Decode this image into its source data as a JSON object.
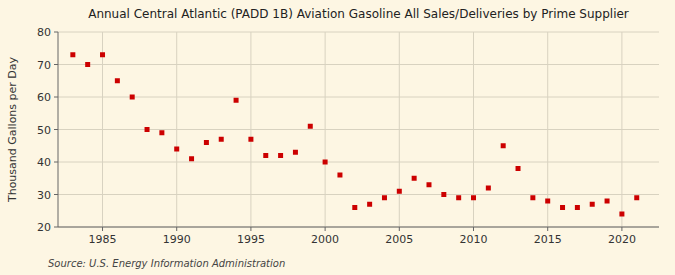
{
  "chart_data": {
    "type": "scatter",
    "title": "Annual Central Atlantic (PADD 1B) Aviation Gasoline All Sales/Deliveries by Prime Supplier",
    "ylabel": "Thousand Gallons per Day",
    "annotations": [
      "Source: U.S. Energy Information Administration"
    ],
    "x": [
      1983,
      1984,
      1985,
      1986,
      1987,
      1988,
      1989,
      1990,
      1991,
      1992,
      1993,
      1994,
      1995,
      1996,
      1997,
      1998,
      1999,
      2000,
      2001,
      2002,
      2003,
      2004,
      2005,
      2006,
      2007,
      2008,
      2009,
      2010,
      2011,
      2012,
      2013,
      2014,
      2015,
      2016,
      2017,
      2018,
      2019,
      2020,
      2021
    ],
    "values": [
      73,
      70,
      73,
      65,
      60,
      50,
      49,
      44,
      41,
      46,
      47,
      59,
      47,
      42,
      42,
      43,
      51,
      40,
      36,
      26,
      27,
      29,
      31,
      35,
      33,
      30,
      29,
      29,
      32,
      45,
      38,
      29,
      28,
      26,
      26,
      27,
      28,
      24,
      29
    ],
    "color": "#cc0000",
    "marker": "square",
    "grid": true,
    "xlim": [
      1982,
      2022.5
    ],
    "ylim": [
      20,
      80
    ],
    "xticks": [
      1985,
      1990,
      1995,
      2000,
      2005,
      2010,
      2015,
      2020
    ],
    "yticks": [
      20,
      30,
      40,
      50,
      60,
      70,
      80
    ]
  }
}
